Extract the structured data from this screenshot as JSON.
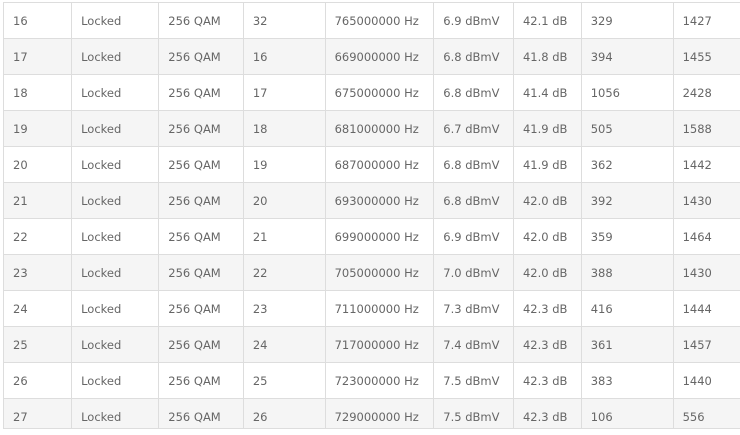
{
  "table": {
    "rows": [
      [
        "16",
        "Locked",
        "256 QAM",
        "32",
        "765000000 Hz",
        "6.9 dBmV",
        "42.1 dB",
        "329",
        "1427"
      ],
      [
        "17",
        "Locked",
        "256 QAM",
        "16",
        "669000000 Hz",
        "6.8 dBmV",
        "41.8 dB",
        "394",
        "1455"
      ],
      [
        "18",
        "Locked",
        "256 QAM",
        "17",
        "675000000 Hz",
        "6.8 dBmV",
        "41.4 dB",
        "1056",
        "2428"
      ],
      [
        "19",
        "Locked",
        "256 QAM",
        "18",
        "681000000 Hz",
        "6.7 dBmV",
        "41.9 dB",
        "505",
        "1588"
      ],
      [
        "20",
        "Locked",
        "256 QAM",
        "19",
        "687000000 Hz",
        "6.8 dBmV",
        "41.9 dB",
        "362",
        "1442"
      ],
      [
        "21",
        "Locked",
        "256 QAM",
        "20",
        "693000000 Hz",
        "6.8 dBmV",
        "42.0 dB",
        "392",
        "1430"
      ],
      [
        "22",
        "Locked",
        "256 QAM",
        "21",
        "699000000 Hz",
        "6.9 dBmV",
        "42.0 dB",
        "359",
        "1464"
      ],
      [
        "23",
        "Locked",
        "256 QAM",
        "22",
        "705000000 Hz",
        "7.0 dBmV",
        "42.0 dB",
        "388",
        "1430"
      ],
      [
        "24",
        "Locked",
        "256 QAM",
        "23",
        "711000000 Hz",
        "7.3 dBmV",
        "42.3 dB",
        "416",
        "1444"
      ],
      [
        "25",
        "Locked",
        "256 QAM",
        "24",
        "717000000 Hz",
        "7.4 dBmV",
        "42.3 dB",
        "361",
        "1457"
      ],
      [
        "26",
        "Locked",
        "256 QAM",
        "25",
        "723000000 Hz",
        "7.5 dBmV",
        "42.3 dB",
        "383",
        "1440"
      ],
      [
        "27",
        "Locked",
        "256 QAM",
        "26",
        "729000000 Hz",
        "7.5 dBmV",
        "42.3 dB",
        "106",
        "556"
      ]
    ]
  }
}
